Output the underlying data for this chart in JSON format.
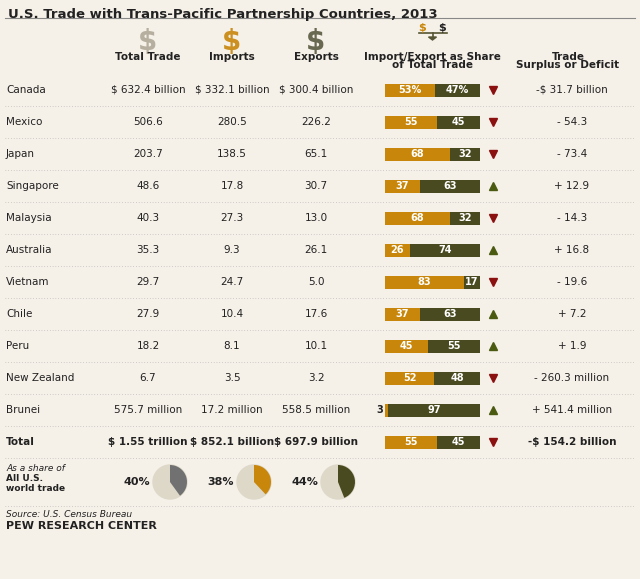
{
  "title": "U.S. Trade with Trans-Pacific Partnership Countries, 2013",
  "bg_color": "#f5f0e8",
  "orange_color": "#c8860a",
  "dark_color": "#4a4a20",
  "text_color": "#222222",
  "dot_color": "#aaaaaa",
  "red_arrow": "#8b1010",
  "green_arrow": "#4a5a10",
  "rows": [
    {
      "country": "Canada",
      "total": "$ 632.4 billion",
      "imports": "$ 332.1 billion",
      "exports": "$ 300.4 billion",
      "import_pct": 53,
      "export_pct": 47,
      "deficit": true,
      "surplus_deficit": "-$ 31.7 billion",
      "imp_label": "53%",
      "exp_label": "47%"
    },
    {
      "country": "Mexico",
      "total": "506.6",
      "imports": "280.5",
      "exports": "226.2",
      "import_pct": 55,
      "export_pct": 45,
      "deficit": true,
      "surplus_deficit": "- 54.3",
      "imp_label": "55",
      "exp_label": "45"
    },
    {
      "country": "Japan",
      "total": "203.7",
      "imports": "138.5",
      "exports": "65.1",
      "import_pct": 68,
      "export_pct": 32,
      "deficit": true,
      "surplus_deficit": "- 73.4",
      "imp_label": "68",
      "exp_label": "32"
    },
    {
      "country": "Singapore",
      "total": "48.6",
      "imports": "17.8",
      "exports": "30.7",
      "import_pct": 37,
      "export_pct": 63,
      "deficit": false,
      "surplus_deficit": "+ 12.9",
      "imp_label": "37",
      "exp_label": "63"
    },
    {
      "country": "Malaysia",
      "total": "40.3",
      "imports": "27.3",
      "exports": "13.0",
      "import_pct": 68,
      "export_pct": 32,
      "deficit": true,
      "surplus_deficit": "- 14.3",
      "imp_label": "68",
      "exp_label": "32"
    },
    {
      "country": "Australia",
      "total": "35.3",
      "imports": "9.3",
      "exports": "26.1",
      "import_pct": 26,
      "export_pct": 74,
      "deficit": false,
      "surplus_deficit": "+ 16.8",
      "imp_label": "26",
      "exp_label": "74"
    },
    {
      "country": "Vietnam",
      "total": "29.7",
      "imports": "24.7",
      "exports": "5.0",
      "import_pct": 83,
      "export_pct": 17,
      "deficit": true,
      "surplus_deficit": "- 19.6",
      "imp_label": "83",
      "exp_label": "17"
    },
    {
      "country": "Chile",
      "total": "27.9",
      "imports": "10.4",
      "exports": "17.6",
      "import_pct": 37,
      "export_pct": 63,
      "deficit": false,
      "surplus_deficit": "+ 7.2",
      "imp_label": "37",
      "exp_label": "63"
    },
    {
      "country": "Peru",
      "total": "18.2",
      "imports": "8.1",
      "exports": "10.1",
      "import_pct": 45,
      "export_pct": 55,
      "deficit": false,
      "surplus_deficit": "+ 1.9",
      "imp_label": "45",
      "exp_label": "55"
    },
    {
      "country": "New Zealand",
      "total": "6.7",
      "imports": "3.5",
      "exports": "3.2",
      "import_pct": 52,
      "export_pct": 48,
      "deficit": true,
      "surplus_deficit": "- 260.3 million",
      "imp_label": "52",
      "exp_label": "48"
    },
    {
      "country": "Brunei",
      "total": "575.7 million",
      "imports": "17.2 million",
      "exports": "558.5 million",
      "import_pct": 3,
      "export_pct": 97,
      "deficit": false,
      "surplus_deficit": "+ 541.4 million",
      "imp_label": "3",
      "exp_label": "97"
    },
    {
      "country": "Total",
      "total": "$ 1.55 trillion",
      "imports": "$ 852.1 billion",
      "exports": "$ 697.9 billion",
      "import_pct": 55,
      "export_pct": 45,
      "deficit": true,
      "surplus_deficit": "-$ 154.2 billion",
      "imp_label": "55",
      "exp_label": "45"
    }
  ],
  "pie_shares": [
    {
      "label": "40%",
      "pct": 40,
      "color": "#717171"
    },
    {
      "label": "38%",
      "pct": 38,
      "color": "#c8860a"
    },
    {
      "label": "44%",
      "pct": 44,
      "color": "#4a4a20"
    }
  ],
  "pie_bg_color": "#ddd8c8",
  "source_text": "Source: U.S. Census Bureau",
  "footer_text": "PEW RESEARCH CENTER"
}
